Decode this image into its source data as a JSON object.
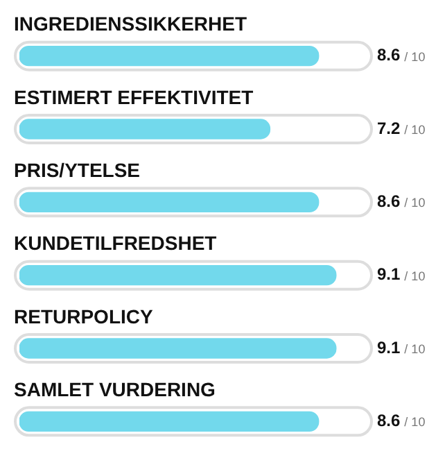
{
  "chart_data": {
    "type": "bar",
    "orientation": "horizontal",
    "categories": [
      "INGREDIENSSIKKERHET",
      "ESTIMERT EFFEKTIVITET",
      "PRIS/YTELSE",
      "KUNDETILFREDSHET",
      "RETURPOLICY",
      "SAMLET VURDERING"
    ],
    "values": [
      8.6,
      7.2,
      8.6,
      9.1,
      9.1,
      8.6
    ],
    "color": "#72d9ec",
    "xlim": [
      0,
      10
    ],
    "tick_labels": "y",
    "data_labels": true,
    "annotations": [
      "/ 10",
      "/ 10",
      "/ 10",
      "/ 10",
      "/ 10",
      "/ 10"
    ]
  }
}
